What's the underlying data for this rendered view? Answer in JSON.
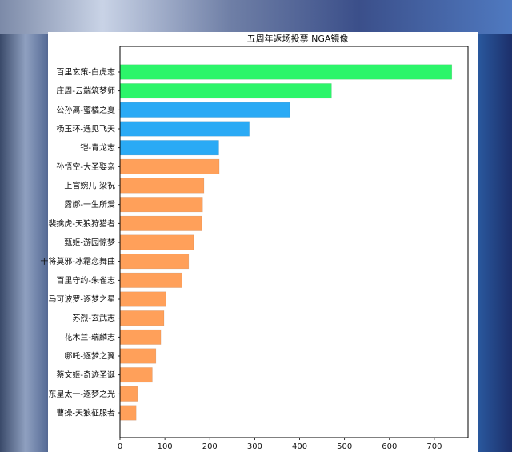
{
  "chart_data": {
    "type": "bar",
    "orientation": "horizontal",
    "title": "五周年返场投票 NGA镜像",
    "xlabel": "",
    "ylabel": "",
    "xlim": [
      0,
      775
    ],
    "xticks": [
      0,
      100,
      200,
      300,
      400,
      500,
      600,
      700
    ],
    "grid": false,
    "categories": [
      "百里玄策-白虎志",
      "庄周-云端筑梦师",
      "公孙离-蜜橘之夏",
      "杨玉环-遇见飞天",
      "铠-青龙志",
      "孙悟空-大圣娶亲",
      "上官婉儿-梁祝",
      "露娜-一生所爱",
      "裴擒虎-天狼狩猎者",
      "甄姬-游园惊梦",
      "干将莫邪-冰霜恋舞曲",
      "百里守约-朱雀志",
      "马可波罗-逐梦之星",
      "苏烈-玄武志",
      "花木兰-瑞麟志",
      "哪吒-逐梦之翼",
      "蔡文姬-奇迹圣诞",
      "东皇太一-逐梦之光",
      "曹操-天狼征服者"
    ],
    "values": [
      739,
      471,
      378,
      288,
      220,
      221,
      187,
      184,
      182,
      164,
      153,
      138,
      102,
      98,
      91,
      80,
      72,
      39,
      36
    ],
    "bar_colors": [
      "#2cf56a",
      "#2cf56a",
      "#2aaaf5",
      "#2aaaf5",
      "#2aaaf5",
      "#ffa05a",
      "#ffa05a",
      "#ffa05a",
      "#ffa05a",
      "#ffa05a",
      "#ffa05a",
      "#ffa05a",
      "#ffa05a",
      "#ffa05a",
      "#ffa05a",
      "#ffa05a",
      "#ffa05a",
      "#ffa05a",
      "#ffa05a"
    ]
  }
}
